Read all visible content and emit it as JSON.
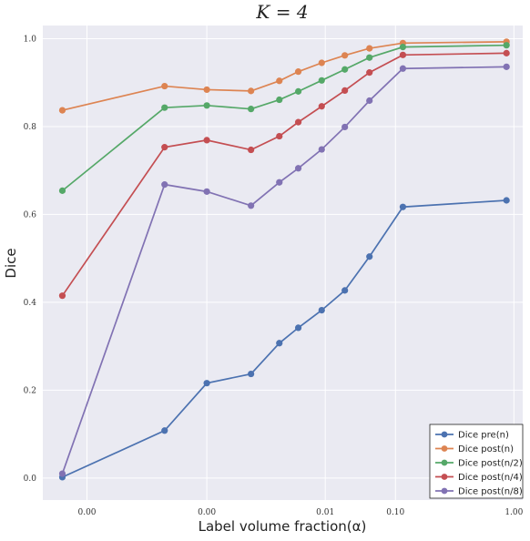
{
  "chart_data": {
    "type": "line",
    "title": "K = 4",
    "xlabel": "Label volume fraction(α)",
    "ylabel": "Dice",
    "x_scale": "log",
    "x": [
      0.0003,
      0.0025,
      0.006,
      0.015,
      0.027,
      0.04,
      0.065,
      0.105,
      0.175,
      0.35,
      3.0
    ],
    "xticks": [
      {
        "value": 0.0005,
        "label": "0.00"
      },
      {
        "value": 0.006,
        "label": "0.00"
      },
      {
        "value": 0.07,
        "label": "0.01"
      },
      {
        "value": 0.3,
        "label": "0.10"
      },
      {
        "value": 3.5,
        "label": "1.00"
      }
    ],
    "xlim": [
      0.0002,
      4.2
    ],
    "ylim": [
      -0.05,
      1.03
    ],
    "yticks": [
      {
        "value": 0.0,
        "label": "0.0"
      },
      {
        "value": 0.2,
        "label": "0.2"
      },
      {
        "value": 0.4,
        "label": "0.4"
      },
      {
        "value": 0.6,
        "label": "0.6"
      },
      {
        "value": 0.8,
        "label": "0.8"
      },
      {
        "value": 1.0,
        "label": "1.0"
      }
    ],
    "grid": true,
    "legend_position": "bottom-right",
    "series": [
      {
        "name": "Dice pre(n)",
        "color": "#4c72b0",
        "values": [
          0.002,
          0.108,
          0.216,
          0.237,
          0.307,
          0.342,
          0.382,
          0.427,
          0.504,
          0.617,
          0.632
        ]
      },
      {
        "name": "Dice post(n)",
        "color": "#dd8452",
        "values": [
          0.837,
          0.892,
          0.884,
          0.881,
          0.904,
          0.925,
          0.945,
          0.962,
          0.978,
          0.99,
          0.993
        ]
      },
      {
        "name": "Dice post(n/2)",
        "color": "#55a868",
        "values": [
          0.654,
          0.843,
          0.848,
          0.84,
          0.861,
          0.88,
          0.905,
          0.93,
          0.957,
          0.981,
          0.985
        ]
      },
      {
        "name": "Dice post(n/4)",
        "color": "#c44e52",
        "values": [
          0.415,
          0.753,
          0.769,
          0.747,
          0.778,
          0.81,
          0.846,
          0.882,
          0.923,
          0.963,
          0.967
        ]
      },
      {
        "name": "Dice post(n/8)",
        "color": "#8172b3",
        "values": [
          0.01,
          0.668,
          0.652,
          0.62,
          0.673,
          0.705,
          0.748,
          0.799,
          0.859,
          0.932,
          0.936
        ]
      }
    ]
  }
}
